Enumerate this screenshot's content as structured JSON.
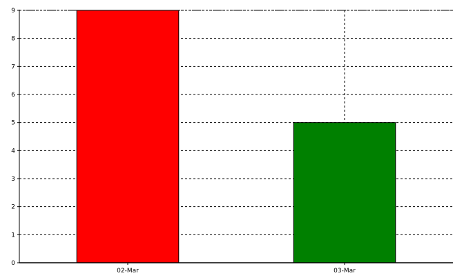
{
  "chart_data": {
    "type": "bar",
    "categories": [
      "02-Mar",
      "03-Mar"
    ],
    "values": [
      9,
      5
    ],
    "bar_colors": [
      "#ff0000",
      "#008000"
    ],
    "ylim": [
      0,
      9
    ],
    "yticks": [
      "0",
      "1",
      "2",
      "3",
      "4",
      "5",
      "6",
      "7",
      "8",
      "9"
    ],
    "grid": true,
    "grid_style": "dashed",
    "legend": "none",
    "title": "",
    "xlabel": "",
    "ylabel": ""
  }
}
